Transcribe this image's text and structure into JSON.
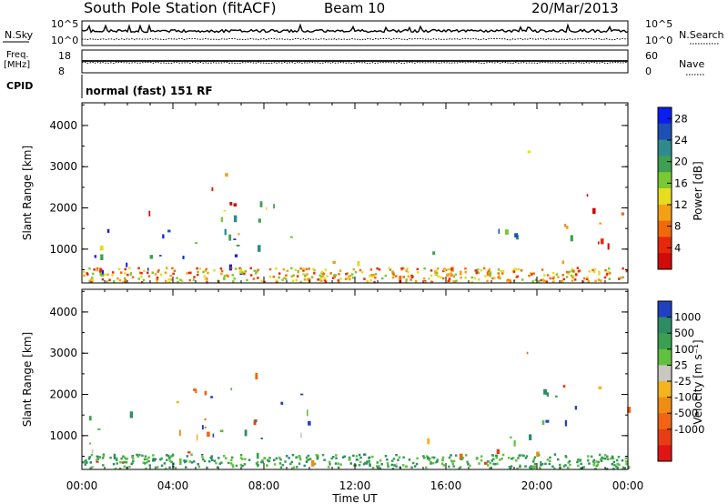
{
  "header": {
    "title": "South Pole Station (fitACF)",
    "beam": "Beam 10",
    "date": "20/Mar/2013"
  },
  "status_panels": {
    "nsky": {
      "label": "N.Sky",
      "ticks": [
        "10^5",
        "10^0"
      ]
    },
    "nsearch": {
      "label": "N.Search",
      "ticks": [
        "10^5",
        "10^0"
      ]
    },
    "freq": {
      "label_line1": "Freq.",
      "label_line2": "[MHz]",
      "ticks": [
        "18",
        "8"
      ]
    },
    "nave": {
      "label": "Nave",
      "ticks": [
        "60",
        "0"
      ]
    },
    "cpid": {
      "label": "CPID",
      "value": "normal (fast) 151 RF"
    }
  },
  "chart_data": [
    {
      "type": "heatmap",
      "name": "power",
      "ylabel": "Slant Range [km]",
      "ylim": [
        180,
        4550
      ],
      "yticks": [
        1000,
        2000,
        3000,
        4000
      ],
      "xlim": [
        0,
        24
      ],
      "xticks": [
        "00:00",
        "04:00",
        "08:00",
        "12:00",
        "16:00",
        "20:00",
        "00:00"
      ],
      "colorbar": {
        "label": "Power [dB]",
        "ticks": [
          "4",
          "8",
          "12",
          "16",
          "20",
          "24",
          "28"
        ],
        "colors": [
          "#0a1ef0",
          "#1e4fb4",
          "#2e8b8b",
          "#3ea050",
          "#7cc832",
          "#e8dc1e",
          "#f5a014",
          "#f06a0a",
          "#e8280a",
          "#d20a0a"
        ]
      }
    },
    {
      "type": "heatmap",
      "name": "velocity",
      "ylabel": "Slant Range [km]",
      "ylim": [
        180,
        4550
      ],
      "yticks": [
        1000,
        2000,
        3000,
        4000
      ],
      "xlim": [
        0,
        24
      ],
      "xticks": [
        "00:00",
        "04:00",
        "08:00",
        "12:00",
        "16:00",
        "20:00",
        "00:00"
      ],
      "xlabel": "Time UT",
      "colorbar": {
        "label": "Velocity [m s⁻¹]",
        "ticks": [
          "1000",
          "500",
          "100",
          "25",
          "-25",
          "-100",
          "-500",
          "-1000"
        ],
        "colors": [
          "#2040c0",
          "#2e8c64",
          "#3aa050",
          "#60c040",
          "#c8c8c0",
          "#f5b41e",
          "#f08c14",
          "#f06414",
          "#e83c14",
          "#e01414"
        ]
      }
    }
  ]
}
